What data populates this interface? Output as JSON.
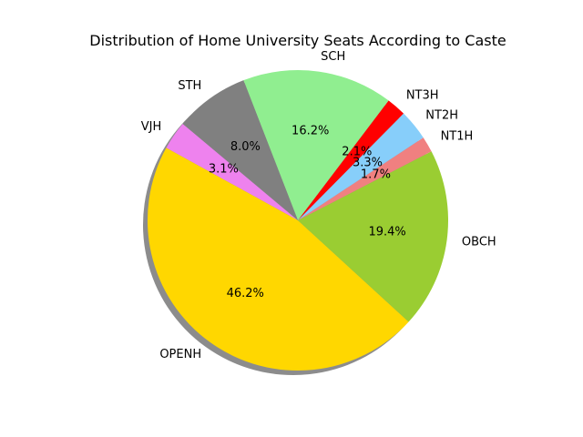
{
  "chart_data": {
    "type": "pie",
    "title": "Distribution of Home University Seats According to Caste",
    "start_angle_deg": 140,
    "direction": "counterclockwise",
    "shadow": true,
    "slices": [
      {
        "label": "VJH",
        "pct_label": "3.1%",
        "value": 3.1,
        "color": "#ee82ee"
      },
      {
        "label": "OPENH",
        "pct_label": "46.2%",
        "value": 46.2,
        "color": "#ffd700"
      },
      {
        "label": "OBCH",
        "pct_label": "19.4%",
        "value": 19.4,
        "color": "#9acd32"
      },
      {
        "label": "NT1H",
        "pct_label": "1.7%",
        "value": 1.7,
        "color": "#f08080"
      },
      {
        "label": "NT2H",
        "pct_label": "3.3%",
        "value": 3.3,
        "color": "#87cefa"
      },
      {
        "label": "NT3H",
        "pct_label": "2.1%",
        "value": 2.1,
        "color": "#ff0000"
      },
      {
        "label": "SCH",
        "pct_label": "16.2%",
        "value": 16.2,
        "color": "#90ee90"
      },
      {
        "label": "STH",
        "pct_label": "8.0%",
        "value": 8.0,
        "color": "#808080"
      }
    ]
  }
}
